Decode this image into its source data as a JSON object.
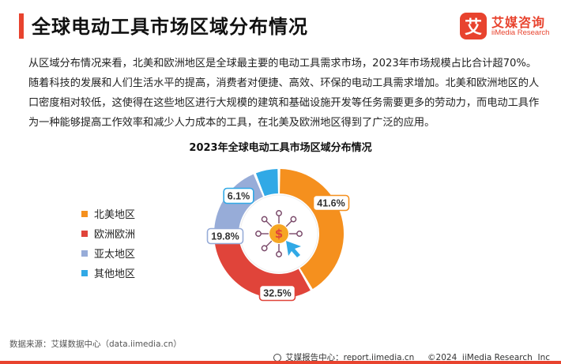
{
  "header": {
    "title": "全球电动工具市场区域分布情况",
    "logo_mark": "艾",
    "logo_cn": "艾媒咨询",
    "logo_en": "iiMedia Research"
  },
  "body_text": "从区域分布情况来看，北美和欧洲地区是全球最主要的电动工具需求市场，2023年市场规模占比合计超70%。随着科技的发展和人们生活水平的提高，消费者对便捷、高效、环保的电动工具需求增加。北美和欧洲地区的人口密度相对较低，这使得在这些地区进行大规模的建筑和基础设施开发等任务需要更多的劳动力，而电动工具作为一种能够提高工作效率和减少人力成本的工具，在北美及欧洲地区得到了广泛的应用。",
  "chart_data": {
    "type": "pie",
    "title": "2023年全球电动工具市场区域分布情况",
    "categories": [
      "北美地区",
      "欧洲欧洲",
      "亚太地区",
      "其他地区"
    ],
    "values": [
      41.6,
      32.5,
      19.8,
      6.1
    ],
    "value_labels": [
      "41.6%",
      "32.5%",
      "19.8%",
      "6.1%"
    ],
    "colors": [
      "#f5901e",
      "#e0443a",
      "#97acd8",
      "#31a9e6"
    ],
    "legend_position": "left",
    "center_icon": "dollar-network-icon"
  },
  "footer": {
    "source": "数据来源：艾媒数据中心（data.iimedia.cn）",
    "right_text": "艾媒报告中心：report.iimedia.cn     ©2024  iiMedia Research  Inc"
  }
}
